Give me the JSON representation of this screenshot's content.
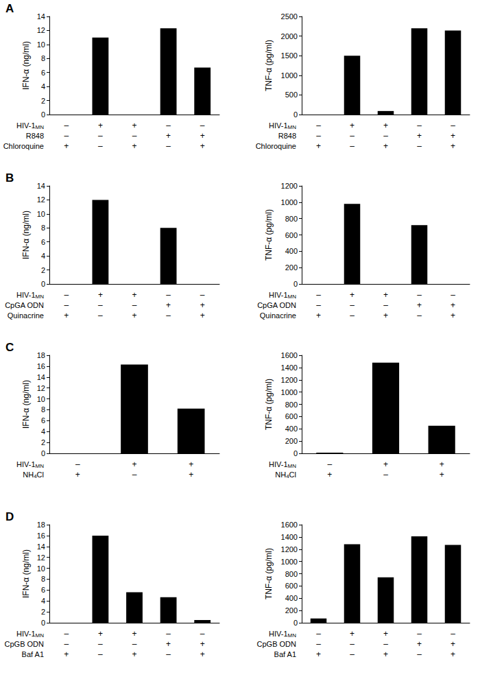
{
  "chart_data": [
    {
      "type": "bar",
      "title": "A",
      "ylabel": "IFN-α (ng/ml)",
      "color": "#000000",
      "grid": false,
      "values": [
        0,
        11,
        0,
        12.3,
        6.7
      ],
      "ylim": [
        0,
        14
      ],
      "yticks": [
        0,
        2,
        4,
        6,
        8,
        10,
        12,
        14
      ],
      "conditions": [
        {
          "label": [
            {
              "text": "HIV-1"
            },
            {
              "text": "MN",
              "sub": true
            }
          ],
          "signs": [
            "–",
            "+",
            "+",
            "–",
            "–"
          ]
        },
        {
          "label": [
            {
              "text": "R848"
            }
          ],
          "signs": [
            "–",
            "–",
            "–",
            "+",
            "+"
          ]
        },
        {
          "label": [
            {
              "text": "Chloroquine"
            }
          ],
          "signs": [
            "+",
            "–",
            "+",
            "–",
            "+"
          ]
        }
      ]
    },
    {
      "type": "bar",
      "ylabel": "TNF-α (pg/ml)",
      "color": "#000000",
      "grid": false,
      "values": [
        0,
        1500,
        90,
        2200,
        2140
      ],
      "ylim": [
        0,
        2500
      ],
      "yticks": [
        0,
        500,
        1000,
        1500,
        2000,
        2500
      ],
      "conditions": [
        {
          "label": [
            {
              "text": "HIV-1"
            },
            {
              "text": "MN",
              "sub": true
            }
          ],
          "signs": [
            "–",
            "+",
            "+",
            "–",
            "–"
          ]
        },
        {
          "label": [
            {
              "text": "R848"
            }
          ],
          "signs": [
            "–",
            "–",
            "–",
            "+",
            "+"
          ]
        },
        {
          "label": [
            {
              "text": "Chloroquine"
            }
          ],
          "signs": [
            "+",
            "–",
            "+",
            "–",
            "+"
          ]
        }
      ]
    },
    {
      "type": "bar",
      "title": "B",
      "ylabel": "IFN-α (ng/ml)",
      "color": "#000000",
      "grid": false,
      "values": [
        0,
        12,
        0,
        8,
        0
      ],
      "ylim": [
        0,
        14
      ],
      "yticks": [
        0,
        2,
        4,
        6,
        8,
        10,
        12,
        14
      ],
      "conditions": [
        {
          "label": [
            {
              "text": "HIV-1"
            },
            {
              "text": "MN",
              "sub": true
            }
          ],
          "signs": [
            "–",
            "+",
            "+",
            "–",
            "–"
          ]
        },
        {
          "label": [
            {
              "text": "CpGA ODN"
            }
          ],
          "signs": [
            "–",
            "–",
            "–",
            "+",
            "+"
          ]
        },
        {
          "label": [
            {
              "text": "Quinacrine"
            }
          ],
          "signs": [
            "+",
            "–",
            "+",
            "–",
            "+"
          ]
        }
      ]
    },
    {
      "type": "bar",
      "ylabel": "TNF-α (pg/ml)",
      "color": "#000000",
      "grid": false,
      "values": [
        0,
        980,
        0,
        720,
        0
      ],
      "ylim": [
        0,
        1200
      ],
      "yticks": [
        0,
        200,
        400,
        600,
        800,
        1000,
        1200
      ],
      "conditions": [
        {
          "label": [
            {
              "text": "HIV-1"
            },
            {
              "text": "MN",
              "sub": true
            }
          ],
          "signs": [
            "–",
            "+",
            "+",
            "–",
            "–"
          ]
        },
        {
          "label": [
            {
              "text": "CpGA ODN"
            }
          ],
          "signs": [
            "–",
            "–",
            "–",
            "+",
            "+"
          ]
        },
        {
          "label": [
            {
              "text": "Quinacrine"
            }
          ],
          "signs": [
            "+",
            "–",
            "+",
            "–",
            "+"
          ]
        }
      ]
    },
    {
      "type": "bar",
      "title": "C",
      "ylabel": "IFN-α (ng/ml)",
      "color": "#000000",
      "grid": false,
      "values": [
        0,
        16.3,
        8.2
      ],
      "ylim": [
        0,
        18
      ],
      "yticks": [
        0,
        2,
        4,
        6,
        8,
        10,
        12,
        14,
        16,
        18
      ],
      "conditions": [
        {
          "label": [
            {
              "text": "HIV-1"
            },
            {
              "text": "MN",
              "sub": true
            }
          ],
          "signs": [
            "–",
            "+",
            "+"
          ]
        },
        {
          "label": [
            {
              "text": "NH"
            },
            {
              "text": "4",
              "sub": true
            },
            {
              "text": "Cl"
            }
          ],
          "signs": [
            "+",
            "–",
            "+"
          ]
        }
      ]
    },
    {
      "type": "bar",
      "ylabel": "TNF-α (pg/ml)",
      "color": "#000000",
      "grid": false,
      "values": [
        10,
        1480,
        450
      ],
      "ylim": [
        0,
        1600
      ],
      "yticks": [
        0,
        200,
        400,
        600,
        800,
        1000,
        1200,
        1400,
        1600
      ],
      "conditions": [
        {
          "label": [
            {
              "text": "HIV-1"
            },
            {
              "text": "MN",
              "sub": true
            }
          ],
          "signs": [
            "–",
            "+",
            "+"
          ]
        },
        {
          "label": [
            {
              "text": "NH"
            },
            {
              "text": "4",
              "sub": true
            },
            {
              "text": "Cl"
            }
          ],
          "signs": [
            "+",
            "–",
            "+"
          ]
        }
      ]
    },
    {
      "type": "bar",
      "title": "D",
      "ylabel": "IFN-α (ng/ml)",
      "color": "#000000",
      "grid": false,
      "values": [
        0,
        16,
        5.6,
        4.7,
        0.5
      ],
      "ylim": [
        0,
        18
      ],
      "yticks": [
        0,
        2,
        4,
        6,
        8,
        10,
        12,
        14,
        16,
        18
      ],
      "conditions": [
        {
          "label": [
            {
              "text": "HIV-1"
            },
            {
              "text": "MN",
              "sub": true
            }
          ],
          "signs": [
            "–",
            "+",
            "+",
            "–",
            "–"
          ]
        },
        {
          "label": [
            {
              "text": "CpGB ODN"
            }
          ],
          "signs": [
            "–",
            "–",
            "–",
            "+",
            "+"
          ]
        },
        {
          "label": [
            {
              "text": "Baf A1"
            }
          ],
          "signs": [
            "+",
            "–",
            "+",
            "–",
            "+"
          ]
        }
      ]
    },
    {
      "type": "bar",
      "ylabel": "TNF-α (pg/ml)",
      "color": "#000000",
      "grid": false,
      "values": [
        70,
        1280,
        740,
        1410,
        1270
      ],
      "ylim": [
        0,
        1600
      ],
      "yticks": [
        0,
        200,
        400,
        600,
        800,
        1000,
        1200,
        1400,
        1600
      ],
      "conditions": [
        {
          "label": [
            {
              "text": "HIV-1"
            },
            {
              "text": "MN",
              "sub": true
            }
          ],
          "signs": [
            "–",
            "+",
            "+",
            "–",
            "–"
          ]
        },
        {
          "label": [
            {
              "text": "CpGB ODN"
            }
          ],
          "signs": [
            "–",
            "–",
            "–",
            "+",
            "+"
          ]
        },
        {
          "label": [
            {
              "text": "Baf A1"
            }
          ],
          "signs": [
            "+",
            "–",
            "+",
            "–",
            "+"
          ]
        }
      ]
    }
  ]
}
